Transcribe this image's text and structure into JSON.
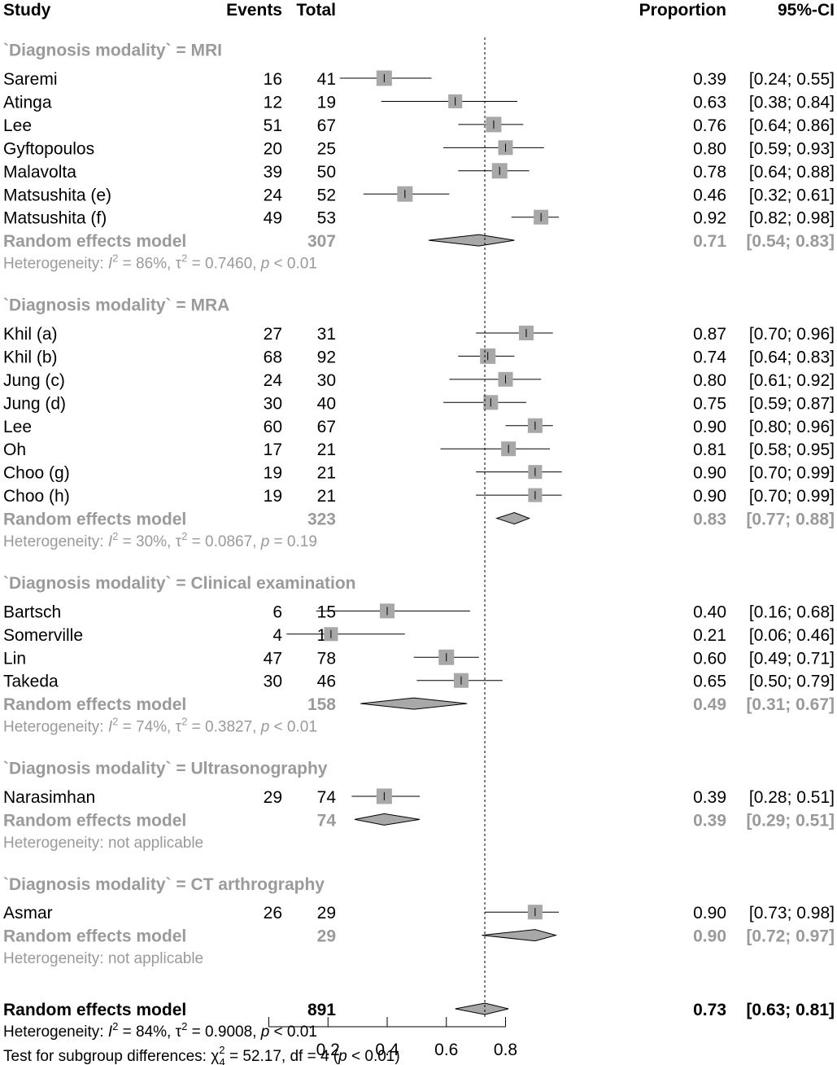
{
  "headers": {
    "study": "Study",
    "events": "Events",
    "total": "Total",
    "proportion": "Proportion",
    "ci": "95%-CI"
  },
  "chart_data": {
    "type": "forest",
    "x_ticks": [
      "0.2",
      "0.4",
      "0.6",
      "0.8"
    ],
    "x_tick_values": [
      0.2,
      0.4,
      0.6,
      0.8
    ],
    "overall_line": 0.73,
    "groups": [
      {
        "label": "`Diagnosis modality` = MRI",
        "studies": [
          {
            "name": "Saremi",
            "events": "16",
            "total": "41",
            "prop": 0.39,
            "lo": 0.24,
            "hi": 0.55,
            "prop_text": "0.39",
            "ci_text": "[0.24; 0.55]",
            "weight": 1.0
          },
          {
            "name": "Atinga",
            "events": "12",
            "total": "19",
            "prop": 0.63,
            "lo": 0.38,
            "hi": 0.84,
            "prop_text": "0.63",
            "ci_text": "[0.38; 0.84]",
            "weight": 0.9
          },
          {
            "name": "Lee",
            "events": "51",
            "total": "67",
            "prop": 0.76,
            "lo": 0.64,
            "hi": 0.86,
            "prop_text": "0.76",
            "ci_text": "[0.64; 0.86]",
            "weight": 1.0
          },
          {
            "name": "Gyftopoulos",
            "events": "20",
            "total": "25",
            "prop": 0.8,
            "lo": 0.59,
            "hi": 0.93,
            "prop_text": "0.80",
            "ci_text": "[0.59; 0.93]",
            "weight": 0.95
          },
          {
            "name": "Malavolta",
            "events": "39",
            "total": "50",
            "prop": 0.78,
            "lo": 0.64,
            "hi": 0.88,
            "prop_text": "0.78",
            "ci_text": "[0.64; 0.88]",
            "weight": 1.0
          },
          {
            "name": "Matsushita (e)",
            "events": "24",
            "total": "52",
            "prop": 0.46,
            "lo": 0.32,
            "hi": 0.61,
            "prop_text": "0.46",
            "ci_text": "[0.32; 0.61]",
            "weight": 1.0
          },
          {
            "name": "Matsushita (f)",
            "events": "49",
            "total": "53",
            "prop": 0.92,
            "lo": 0.82,
            "hi": 0.98,
            "prop_text": "0.92",
            "ci_text": "[0.82; 0.98]",
            "weight": 0.95
          }
        ],
        "summary": {
          "label": "Random effects model",
          "total": "307",
          "prop": 0.71,
          "lo": 0.54,
          "hi": 0.83,
          "prop_text": "0.71",
          "ci_text": "[0.54; 0.83]"
        },
        "het_prefix": "Heterogeneity: ",
        "het_i": "I",
        "het_mid": " = 86%, ",
        "het_tau": "τ",
        "het_mid2": " = 0.7460, ",
        "het_p": "p",
        "het_end": " < 0.01"
      },
      {
        "label": "`Diagnosis modality` = MRA",
        "studies": [
          {
            "name": "Khil (a)",
            "events": "27",
            "total": "31",
            "prop": 0.87,
            "lo": 0.7,
            "hi": 0.96,
            "prop_text": "0.87",
            "ci_text": "[0.70; 0.96]",
            "weight": 0.95
          },
          {
            "name": "Khil (b)",
            "events": "68",
            "total": "92",
            "prop": 0.74,
            "lo": 0.64,
            "hi": 0.83,
            "prop_text": "0.74",
            "ci_text": "[0.64; 0.83]",
            "weight": 1.0
          },
          {
            "name": "Jung (c)",
            "events": "24",
            "total": "30",
            "prop": 0.8,
            "lo": 0.61,
            "hi": 0.92,
            "prop_text": "0.80",
            "ci_text": "[0.61; 0.92]",
            "weight": 0.95
          },
          {
            "name": "Jung (d)",
            "events": "30",
            "total": "40",
            "prop": 0.75,
            "lo": 0.59,
            "hi": 0.87,
            "prop_text": "0.75",
            "ci_text": "[0.59; 0.87]",
            "weight": 0.95
          },
          {
            "name": "Lee",
            "events": "60",
            "total": "67",
            "prop": 0.9,
            "lo": 0.8,
            "hi": 0.96,
            "prop_text": "0.90",
            "ci_text": "[0.80; 0.96]",
            "weight": 0.95
          },
          {
            "name": "Oh",
            "events": "17",
            "total": "21",
            "prop": 0.81,
            "lo": 0.58,
            "hi": 0.95,
            "prop_text": "0.81",
            "ci_text": "[0.58; 0.95]",
            "weight": 0.95
          },
          {
            "name": "Choo (g)",
            "events": "19",
            "total": "21",
            "prop": 0.9,
            "lo": 0.7,
            "hi": 0.99,
            "prop_text": "0.90",
            "ci_text": "[0.70; 0.99]",
            "weight": 0.9
          },
          {
            "name": "Choo (h)",
            "events": "19",
            "total": "21",
            "prop": 0.9,
            "lo": 0.7,
            "hi": 0.99,
            "prop_text": "0.90",
            "ci_text": "[0.70; 0.99]",
            "weight": 0.9
          }
        ],
        "summary": {
          "label": "Random effects model",
          "total": "323",
          "prop": 0.83,
          "lo": 0.77,
          "hi": 0.88,
          "prop_text": "0.83",
          "ci_text": "[0.77; 0.88]"
        },
        "het_prefix": "Heterogeneity: ",
        "het_i": "I",
        "het_mid": " = 30%, ",
        "het_tau": "τ",
        "het_mid2": " = 0.0867, ",
        "het_p": "p",
        "het_end": " = 0.19"
      },
      {
        "label": "`Diagnosis modality` = Clinical examination",
        "studies": [
          {
            "name": "Bartsch",
            "events": "6",
            "total": "15",
            "prop": 0.4,
            "lo": 0.16,
            "hi": 0.68,
            "prop_text": "0.40",
            "ci_text": "[0.16; 0.68]",
            "weight": 0.95
          },
          {
            "name": "Somerville",
            "events": "4",
            "total": "19",
            "prop": 0.21,
            "lo": 0.06,
            "hi": 0.46,
            "prop_text": "0.21",
            "ci_text": "[0.06; 0.46]",
            "weight": 0.9
          },
          {
            "name": "Lin",
            "events": "47",
            "total": "78",
            "prop": 0.6,
            "lo": 0.49,
            "hi": 0.71,
            "prop_text": "0.60",
            "ci_text": "[0.49; 0.71]",
            "weight": 1.0
          },
          {
            "name": "Takeda",
            "events": "30",
            "total": "46",
            "prop": 0.65,
            "lo": 0.5,
            "hi": 0.79,
            "prop_text": "0.65",
            "ci_text": "[0.50; 0.79]",
            "weight": 0.95
          }
        ],
        "summary": {
          "label": "Random effects model",
          "total": "158",
          "prop": 0.49,
          "lo": 0.31,
          "hi": 0.67,
          "prop_text": "0.49",
          "ci_text": "[0.31; 0.67]"
        },
        "het_prefix": "Heterogeneity: ",
        "het_i": "I",
        "het_mid": " = 74%, ",
        "het_tau": "τ",
        "het_mid2": " = 0.3827, ",
        "het_p": "p",
        "het_end": " < 0.01"
      },
      {
        "label": "`Diagnosis modality` = Ultrasonography",
        "studies": [
          {
            "name": "Narasimhan",
            "events": "29",
            "total": "74",
            "prop": 0.39,
            "lo": 0.28,
            "hi": 0.51,
            "prop_text": "0.39",
            "ci_text": "[0.28; 0.51]",
            "weight": 1.0
          }
        ],
        "summary": {
          "label": "Random effects model",
          "total": "74",
          "prop": 0.39,
          "lo": 0.29,
          "hi": 0.51,
          "prop_text": "0.39",
          "ci_text": "[0.29; 0.51]"
        },
        "het_text": "Heterogeneity: not applicable"
      },
      {
        "label": "`Diagnosis modality` = CT arthrography",
        "studies": [
          {
            "name": "Asmar",
            "events": "26",
            "total": "29",
            "prop": 0.9,
            "lo": 0.73,
            "hi": 0.98,
            "prop_text": "0.90",
            "ci_text": "[0.73; 0.98]",
            "weight": 0.95
          }
        ],
        "summary": {
          "label": "Random effects model",
          "total": "29",
          "prop": 0.9,
          "lo": 0.72,
          "hi": 0.97,
          "prop_text": "0.90",
          "ci_text": "[0.72; 0.97]"
        },
        "het_text": "Heterogeneity: not applicable"
      }
    ],
    "overall": {
      "label": "Random effects model",
      "total": "891",
      "prop": 0.73,
      "lo": 0.63,
      "hi": 0.81,
      "prop_text": "0.73",
      "ci_text": "[0.63; 0.81]",
      "het_prefix": "Heterogeneity: ",
      "het_i": "I",
      "het_mid": " = 84%, ",
      "het_tau": "τ",
      "het_mid2": " = 0.9008, ",
      "het_p": "p",
      "het_end": " < 0.01"
    },
    "subgroup_test": {
      "prefix": "Test for subgroup differences: ",
      "chi": "χ",
      "sub": "4",
      "sup": "2",
      "rest": " = 52.17, df = 4 (",
      "p": "p",
      "end": " < 0.01)"
    }
  }
}
